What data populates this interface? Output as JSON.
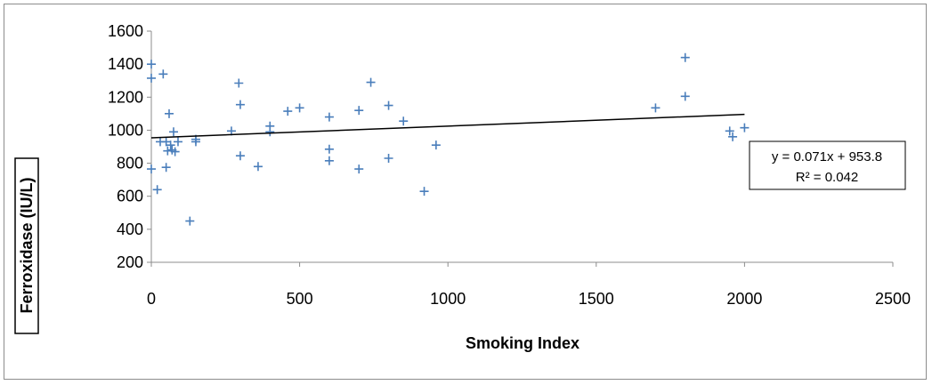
{
  "chart_data": {
    "type": "scatter",
    "xlabel": "Smoking Index",
    "ylabel": "Ferroxidase (IU/L)",
    "xlim": [
      0,
      2500
    ],
    "ylim": [
      200,
      1600
    ],
    "xticks": [
      0,
      500,
      1000,
      1500,
      2000,
      2500
    ],
    "yticks": [
      200,
      400,
      600,
      800,
      1000,
      1200,
      1400,
      1600
    ],
    "xtick_labels": [
      "0",
      "500",
      "1000",
      "1500",
      "2000",
      "2500"
    ],
    "ytick_labels": [
      "200",
      "400",
      "600",
      "800",
      "1000",
      "1200",
      "1400",
      "1600"
    ],
    "grid": false,
    "marker_color": "#4a7ebb",
    "trendline": {
      "slope": 0.071,
      "intercept": 953.8,
      "x_range": [
        0,
        2000
      ],
      "color": "#000000",
      "equation_label": "y = 0.071x + 953.8",
      "r2_label": "R² = 0.042"
    },
    "points": [
      [
        0,
        1400
      ],
      [
        0,
        1315
      ],
      [
        0,
        765
      ],
      [
        20,
        640
      ],
      [
        30,
        930
      ],
      [
        40,
        1340
      ],
      [
        50,
        930
      ],
      [
        50,
        775
      ],
      [
        55,
        875
      ],
      [
        60,
        1100
      ],
      [
        65,
        910
      ],
      [
        70,
        880
      ],
      [
        75,
        990
      ],
      [
        80,
        870
      ],
      [
        90,
        930
      ],
      [
        130,
        450
      ],
      [
        150,
        945
      ],
      [
        150,
        930
      ],
      [
        270,
        995
      ],
      [
        295,
        1285
      ],
      [
        300,
        1155
      ],
      [
        300,
        845
      ],
      [
        360,
        780
      ],
      [
        400,
        1025
      ],
      [
        400,
        990
      ],
      [
        460,
        1115
      ],
      [
        500,
        1135
      ],
      [
        600,
        1080
      ],
      [
        600,
        885
      ],
      [
        600,
        815
      ],
      [
        700,
        1120
      ],
      [
        700,
        765
      ],
      [
        740,
        1290
      ],
      [
        800,
        1150
      ],
      [
        800,
        830
      ],
      [
        850,
        1055
      ],
      [
        920,
        630
      ],
      [
        960,
        910
      ],
      [
        1700,
        1135
      ],
      [
        1800,
        1440
      ],
      [
        1800,
        1205
      ],
      [
        1950,
        995
      ],
      [
        1960,
        960
      ],
      [
        2000,
        1015
      ]
    ]
  }
}
